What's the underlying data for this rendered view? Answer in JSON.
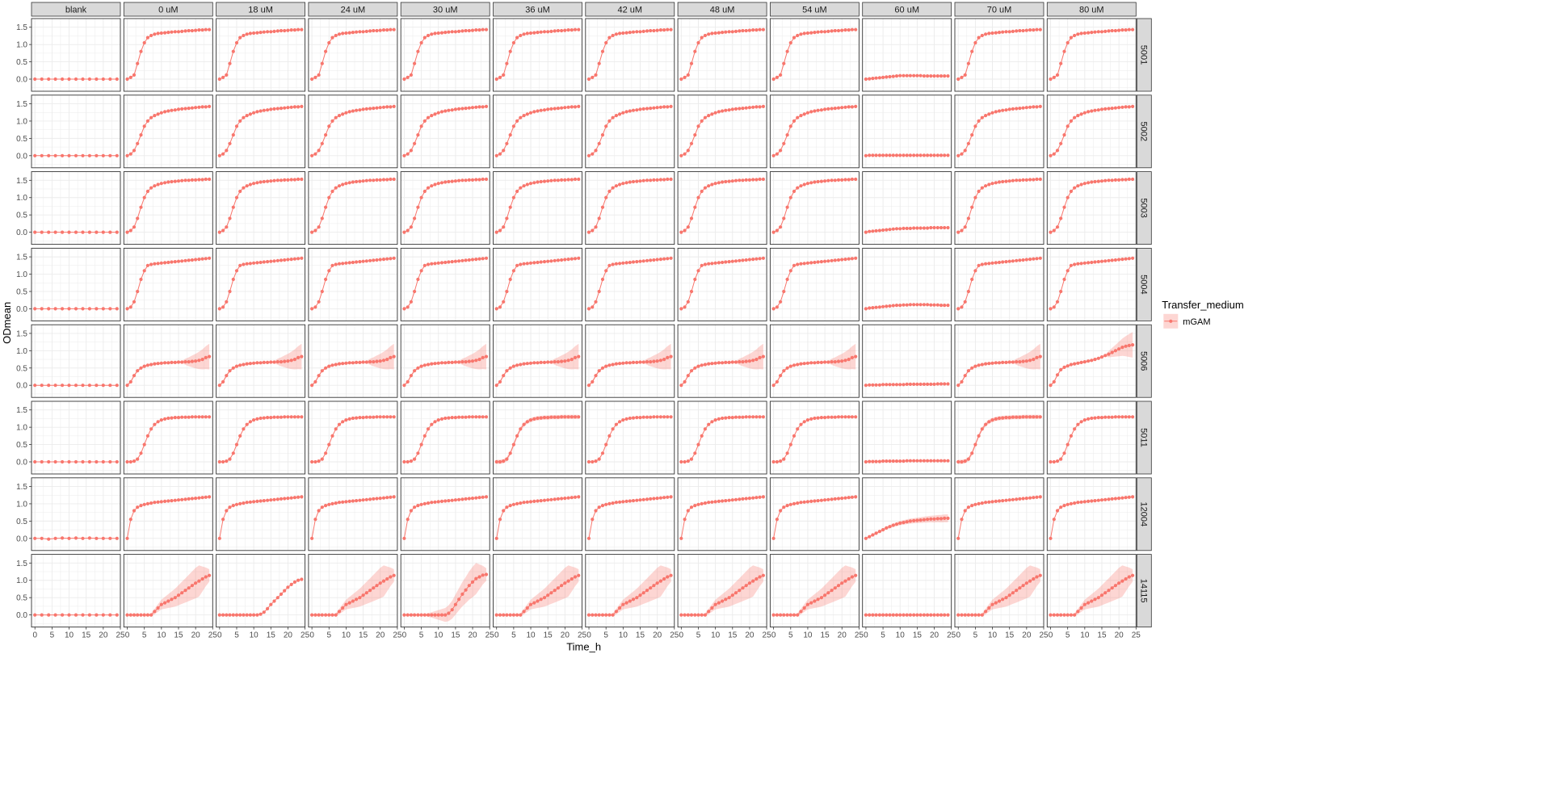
{
  "chart_data": {
    "type": "line",
    "xlabel": "Time_h",
    "ylabel": "ODmean",
    "x_ticks": [
      0,
      5,
      10,
      15,
      20,
      25
    ],
    "y_ticks": [
      0.0,
      0.5,
      1.0,
      1.5
    ],
    "y_tick_labels": [
      "0.0",
      "0.5",
      "1.0",
      "1.5"
    ],
    "xlim": [
      -1,
      25
    ],
    "ylim": [
      -0.35,
      1.75
    ],
    "grid": true,
    "legend": {
      "title": "Transfer_medium",
      "entries": [
        "mGAM"
      ],
      "position": "right"
    },
    "colors": {
      "series": "#F8766D",
      "ribbon": "#F8766D",
      "strip_bg": "#D9D9D9",
      "grid": "#EBEBEB",
      "panel_border": "#333333"
    },
    "columns": [
      "blank",
      "0 uM",
      "18 uM",
      "24 uM",
      "30 uM",
      "36 uM",
      "42 uM",
      "48 uM",
      "54 uM",
      "60 uM",
      "70 uM",
      "80 uM"
    ],
    "rows": [
      "5001",
      "5002",
      "5003",
      "5004",
      "5006",
      "5011",
      "12004",
      "14115"
    ],
    "time_points": [
      0,
      1,
      2,
      3,
      4,
      5,
      6,
      7,
      8,
      9,
      10,
      11,
      12,
      13,
      14,
      15,
      16,
      17,
      18,
      19,
      20,
      21,
      22,
      23,
      24
    ],
    "blank_time_points": [
      0,
      2,
      4,
      6,
      8,
      10,
      12,
      14,
      16,
      18,
      20,
      22,
      24
    ],
    "profiles": {
      "blank": {
        "values": [
          0,
          0,
          0,
          0,
          0,
          0,
          0,
          0,
          0,
          0,
          0,
          0,
          0
        ],
        "values_12004": [
          0.0,
          0.0,
          -0.02,
          0.0,
          0.01,
          0.0,
          0.01,
          0.0,
          0.01,
          0.0,
          0.0,
          0.0,
          0.0
        ]
      },
      "5001": [
        0,
        0.05,
        0.12,
        0.45,
        0.8,
        1.05,
        1.2,
        1.26,
        1.3,
        1.32,
        1.33,
        1.34,
        1.35,
        1.36,
        1.37,
        1.37,
        1.38,
        1.39,
        1.4,
        1.4,
        1.41,
        1.42,
        1.42,
        1.43,
        1.43
      ],
      "5001_60uM": [
        0,
        0.01,
        0.02,
        0.03,
        0.04,
        0.05,
        0.06,
        0.07,
        0.08,
        0.09,
        0.1,
        0.1,
        0.1,
        0.1,
        0.1,
        0.1,
        0.1,
        0.09,
        0.09,
        0.09,
        0.09,
        0.09,
        0.09,
        0.09,
        0.09
      ],
      "5002": [
        0,
        0.05,
        0.15,
        0.35,
        0.6,
        0.85,
        1.0,
        1.1,
        1.16,
        1.2,
        1.24,
        1.27,
        1.29,
        1.31,
        1.32,
        1.34,
        1.35,
        1.36,
        1.37,
        1.38,
        1.39,
        1.4,
        1.41,
        1.41,
        1.42
      ],
      "5002_60uM": [
        0,
        0.01,
        0.01,
        0.01,
        0.01,
        0.01,
        0.01,
        0.01,
        0.01,
        0.01,
        0.01,
        0.01,
        0.01,
        0.01,
        0.01,
        0.01,
        0.01,
        0.01,
        0.01,
        0.01,
        0.01,
        0.01,
        0.01,
        0.01,
        0.01
      ],
      "5003": [
        0,
        0.05,
        0.15,
        0.4,
        0.72,
        1.0,
        1.18,
        1.28,
        1.34,
        1.38,
        1.41,
        1.43,
        1.45,
        1.46,
        1.47,
        1.48,
        1.49,
        1.5,
        1.5,
        1.51,
        1.51,
        1.52,
        1.52,
        1.53,
        1.53
      ],
      "5003_60uM": [
        0,
        0.02,
        0.03,
        0.04,
        0.05,
        0.06,
        0.07,
        0.08,
        0.09,
        0.1,
        0.1,
        0.11,
        0.11,
        0.11,
        0.12,
        0.12,
        0.12,
        0.12,
        0.12,
        0.13,
        0.13,
        0.13,
        0.13,
        0.13,
        0.13
      ],
      "5004": [
        0,
        0.05,
        0.2,
        0.5,
        0.85,
        1.1,
        1.25,
        1.28,
        1.3,
        1.31,
        1.32,
        1.33,
        1.34,
        1.35,
        1.36,
        1.37,
        1.38,
        1.39,
        1.4,
        1.41,
        1.42,
        1.43,
        1.44,
        1.45,
        1.46
      ],
      "5004_60uM": [
        0,
        0.02,
        0.03,
        0.04,
        0.05,
        0.06,
        0.07,
        0.08,
        0.09,
        0.1,
        0.1,
        0.11,
        0.11,
        0.12,
        0.12,
        0.12,
        0.12,
        0.12,
        0.12,
        0.11,
        0.11,
        0.11,
        0.1,
        0.1,
        0.1
      ],
      "5006": [
        0,
        0.1,
        0.28,
        0.42,
        0.5,
        0.55,
        0.58,
        0.6,
        0.62,
        0.63,
        0.64,
        0.65,
        0.65,
        0.66,
        0.66,
        0.67,
        0.67,
        0.68,
        0.68,
        0.69,
        0.7,
        0.72,
        0.75,
        0.8,
        0.83
      ],
      "5006_60uM": [
        0,
        0.01,
        0.01,
        0.01,
        0.01,
        0.02,
        0.02,
        0.02,
        0.02,
        0.02,
        0.02,
        0.02,
        0.03,
        0.03,
        0.03,
        0.03,
        0.03,
        0.03,
        0.03,
        0.03,
        0.03,
        0.04,
        0.04,
        0.04,
        0.04
      ],
      "5006_80uM": [
        0,
        0.1,
        0.3,
        0.45,
        0.52,
        0.56,
        0.6,
        0.62,
        0.64,
        0.66,
        0.68,
        0.7,
        0.72,
        0.75,
        0.78,
        0.82,
        0.86,
        0.9,
        0.95,
        1.0,
        1.05,
        1.1,
        1.13,
        1.15,
        1.17
      ],
      "5011": [
        0,
        0,
        0.02,
        0.08,
        0.25,
        0.5,
        0.75,
        0.95,
        1.08,
        1.16,
        1.21,
        1.24,
        1.26,
        1.27,
        1.28,
        1.28,
        1.29,
        1.29,
        1.29,
        1.3,
        1.3,
        1.3,
        1.3,
        1.3,
        1.3
      ],
      "5011_60uM": [
        0,
        0.01,
        0.01,
        0.01,
        0.01,
        0.02,
        0.02,
        0.02,
        0.02,
        0.02,
        0.02,
        0.02,
        0.03,
        0.03,
        0.03,
        0.03,
        0.03,
        0.03,
        0.03,
        0.03,
        0.03,
        0.03,
        0.03,
        0.03,
        0.03
      ],
      "12004": [
        0,
        0.55,
        0.8,
        0.9,
        0.95,
        0.98,
        1.0,
        1.02,
        1.04,
        1.05,
        1.06,
        1.07,
        1.08,
        1.09,
        1.1,
        1.11,
        1.12,
        1.13,
        1.14,
        1.15,
        1.16,
        1.17,
        1.18,
        1.19,
        1.2
      ],
      "12004_60uM": [
        0,
        0.05,
        0.1,
        0.15,
        0.2,
        0.25,
        0.3,
        0.34,
        0.38,
        0.41,
        0.44,
        0.46,
        0.48,
        0.5,
        0.51,
        0.52,
        0.53,
        0.54,
        0.55,
        0.56,
        0.56,
        0.57,
        0.57,
        0.58,
        0.58
      ],
      "14115": [
        0,
        0,
        0,
        0,
        0,
        0,
        0,
        0,
        0.1,
        0.2,
        0.3,
        0.35,
        0.4,
        0.45,
        0.5,
        0.57,
        0.64,
        0.71,
        0.78,
        0.85,
        0.92,
        0.98,
        1.04,
        1.1,
        1.14
      ],
      "14115_18uM": [
        0,
        0,
        0,
        0,
        0,
        0,
        0,
        0,
        0,
        0,
        0,
        0,
        0.02,
        0.08,
        0.18,
        0.3,
        0.4,
        0.5,
        0.6,
        0.7,
        0.8,
        0.88,
        0.95,
        1.0,
        1.03
      ],
      "14115_30uM": [
        0,
        0,
        0,
        0,
        0,
        0,
        0,
        0,
        0,
        0,
        0,
        0,
        0,
        0.05,
        0.15,
        0.3,
        0.45,
        0.6,
        0.72,
        0.85,
        0.95,
        1.05,
        1.1,
        1.15,
        1.17
      ],
      "14115_60uM": [
        0,
        0,
        0,
        0,
        0,
        0,
        0,
        0,
        0,
        0,
        0,
        0,
        0,
        0,
        0,
        0,
        0,
        0,
        0,
        0,
        0,
        0,
        0,
        0,
        0
      ]
    }
  }
}
